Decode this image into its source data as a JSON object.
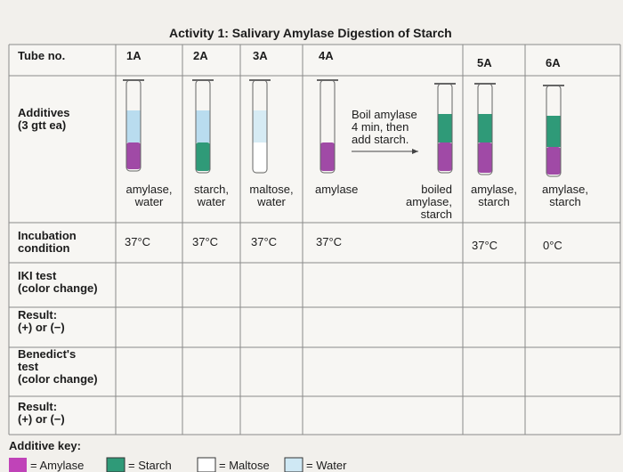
{
  "title": "Activity 1: Salivary Amylase Digestion of Starch",
  "table": {
    "row_labels": [
      "Tube no.",
      "Additives\n(3 gtt ea)",
      "Incubation\ncondition",
      "IKI test\n(color change)",
      "Result:\n(+) or (−)",
      "Benedict's\ntest\n(color change)",
      "Result:\n(+) or (−)"
    ],
    "columns": [
      {
        "tube": "1A",
        "additives": "amylase,\nwater",
        "incubation": "37°C"
      },
      {
        "tube": "2A",
        "additives": "starch,\nwater",
        "incubation": "37°C"
      },
      {
        "tube": "3A",
        "additives": "maltose,\nwater",
        "incubation": "37°C"
      },
      {
        "tube": "4A",
        "additives": "amylase",
        "note": "Boil amylase\n4 min, then\nadd starch.",
        "additives_after": "boiled\namylase,\nstarch",
        "incubation": "37°C"
      },
      {
        "tube": "5A",
        "additives": "amylase,\nstarch",
        "incubation": "37°C"
      },
      {
        "tube": "6A",
        "additives": "amylase,\nstarch",
        "incubation": "0°C"
      }
    ]
  },
  "key": {
    "title": "Additive key:",
    "items": [
      "= Amylase",
      "= Starch",
      "= Maltose",
      "= Water"
    ]
  }
}
